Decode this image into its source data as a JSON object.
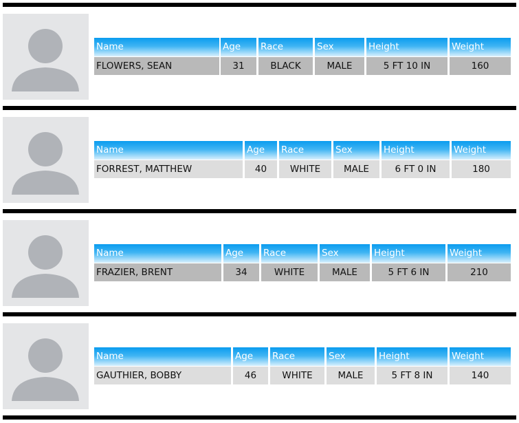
{
  "headers": [
    "Name",
    "Age",
    "Race",
    "Sex",
    "Height",
    "Weight"
  ],
  "records": [
    [
      "FLOWERS, SEAN",
      31,
      "BLACK",
      "MALE",
      "5 FT 10 IN",
      160
    ],
    [
      "FORREST, MATTHEW",
      40,
      "WHITE",
      "MALE",
      "6 FT 0 IN",
      180
    ],
    [
      "FRAZIER, BRENT",
      34,
      "WHITE",
      "MALE",
      "5 FT 6 IN",
      210
    ],
    [
      "GAUTHIER, BOBBY",
      46,
      "WHITE",
      "MALE",
      "5 FT 8 IN",
      140
    ]
  ]
}
